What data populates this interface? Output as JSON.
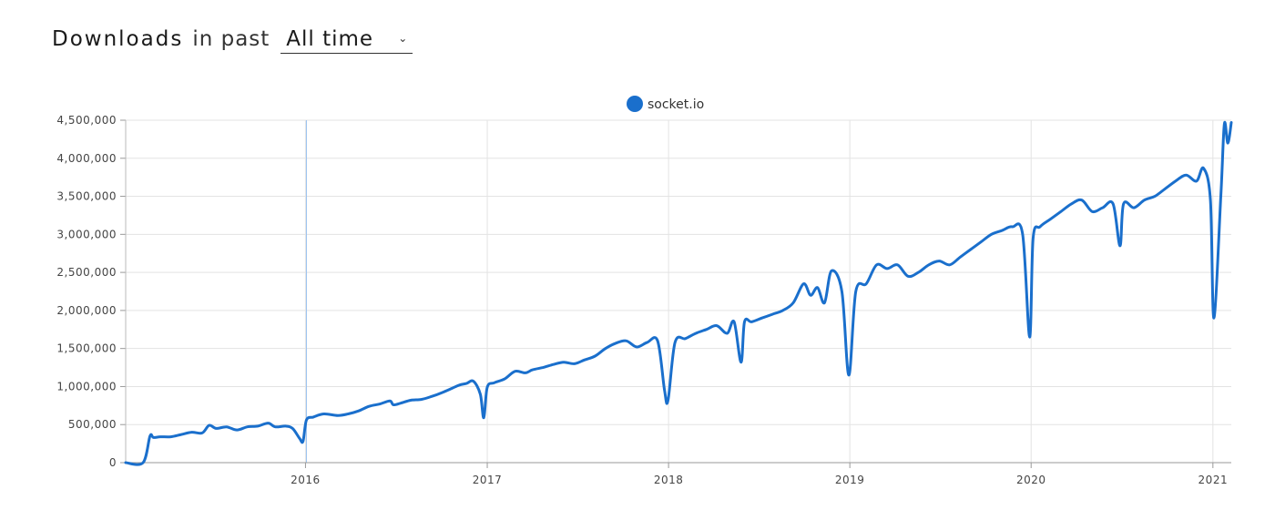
{
  "header": {
    "title": "Downloads",
    "subtitle": "in past",
    "range_selected": "All time"
  },
  "colors": {
    "series": "#1a6fcc",
    "grid": "#e3e3e3",
    "highlight": "#9cc3f0"
  },
  "icons": {
    "range_dropdown": "chevron-down-icon"
  },
  "chart_data": {
    "type": "line",
    "legend": {
      "entries": [
        "socket.io"
      ],
      "position": "top-center"
    },
    "x_ticks": [
      "2016",
      "2017",
      "2018",
      "2019",
      "2020",
      "2021"
    ],
    "y_ticks": [
      "0",
      "500,000",
      "1,000,000",
      "1,500,000",
      "2,000,000",
      "2,500,000",
      "3,000,000",
      "3,500,000",
      "4,000,000",
      "4,500,000"
    ],
    "xlim": [
      "2015-01-04",
      "2021-02-07"
    ],
    "ylim": [
      0,
      4500000
    ],
    "grid": true,
    "highlight_date": "2016-01-03",
    "series": [
      {
        "name": "socket.io",
        "x": [
          "2015-01-04",
          "2015-02-08",
          "2015-02-22",
          "2015-03-01",
          "2015-03-15",
          "2015-04-05",
          "2015-04-26",
          "2015-05-17",
          "2015-06-07",
          "2015-06-21",
          "2015-07-05",
          "2015-07-26",
          "2015-08-16",
          "2015-09-06",
          "2015-09-27",
          "2015-10-18",
          "2015-11-01",
          "2015-11-22",
          "2015-12-06",
          "2015-12-20",
          "2015-12-27",
          "2016-01-03",
          "2016-01-17",
          "2016-02-07",
          "2016-03-06",
          "2016-03-27",
          "2016-04-17",
          "2016-05-08",
          "2016-05-29",
          "2016-06-19",
          "2016-06-26",
          "2016-07-10",
          "2016-07-31",
          "2016-08-21",
          "2016-09-11",
          "2016-10-02",
          "2016-10-23",
          "2016-11-06",
          "2016-11-20",
          "2016-12-04",
          "2016-12-18",
          "2016-12-25",
          "2017-01-01",
          "2017-01-15",
          "2017-02-05",
          "2017-02-26",
          "2017-03-19",
          "2017-04-02",
          "2017-04-23",
          "2017-05-14",
          "2017-06-04",
          "2017-06-25",
          "2017-07-16",
          "2017-08-06",
          "2017-08-27",
          "2017-09-17",
          "2017-10-08",
          "2017-10-29",
          "2017-11-19",
          "2017-12-10",
          "2017-12-24",
          "2017-12-31",
          "2018-01-14",
          "2018-02-04",
          "2018-02-25",
          "2018-03-18",
          "2018-04-08",
          "2018-04-29",
          "2018-05-13",
          "2018-05-27",
          "2018-06-03",
          "2018-06-17",
          "2018-07-08",
          "2018-07-29",
          "2018-08-19",
          "2018-09-09",
          "2018-09-30",
          "2018-10-14",
          "2018-10-28",
          "2018-11-11",
          "2018-11-25",
          "2018-12-16",
          "2018-12-30",
          "2019-01-13",
          "2019-02-03",
          "2019-02-24",
          "2019-03-17",
          "2019-04-07",
          "2019-04-28",
          "2019-05-19",
          "2019-06-09",
          "2019-06-30",
          "2019-07-21",
          "2019-08-11",
          "2019-09-01",
          "2019-09-22",
          "2019-10-13",
          "2019-11-03",
          "2019-11-24",
          "2019-12-15",
          "2019-12-29",
          "2020-01-05",
          "2020-01-19",
          "2020-02-09",
          "2020-03-01",
          "2020-03-22",
          "2020-04-12",
          "2020-05-03",
          "2020-05-24",
          "2020-06-14",
          "2020-06-28",
          "2020-07-05",
          "2020-07-26",
          "2020-08-16",
          "2020-09-06",
          "2020-09-27",
          "2020-10-18",
          "2020-11-08",
          "2020-11-29",
          "2020-12-13",
          "2020-12-27",
          "2021-01-03",
          "2021-01-17",
          "2021-01-24",
          "2021-01-31",
          "2021-02-07"
        ],
        "values": [
          0,
          0,
          350000,
          330000,
          340000,
          340000,
          370000,
          400000,
          390000,
          490000,
          450000,
          470000,
          430000,
          470000,
          480000,
          520000,
          470000,
          480000,
          450000,
          320000,
          280000,
          560000,
          600000,
          640000,
          620000,
          640000,
          680000,
          740000,
          770000,
          810000,
          760000,
          780000,
          820000,
          830000,
          870000,
          920000,
          980000,
          1020000,
          1040000,
          1070000,
          900000,
          590000,
          990000,
          1050000,
          1100000,
          1200000,
          1180000,
          1220000,
          1250000,
          1290000,
          1320000,
          1300000,
          1350000,
          1400000,
          1500000,
          1570000,
          1600000,
          1520000,
          1580000,
          1600000,
          950000,
          820000,
          1580000,
          1630000,
          1700000,
          1750000,
          1800000,
          1700000,
          1850000,
          1320000,
          1850000,
          1850000,
          1900000,
          1950000,
          2000000,
          2100000,
          2350000,
          2200000,
          2300000,
          2100000,
          2520000,
          2250000,
          1150000,
          2250000,
          2350000,
          2600000,
          2550000,
          2600000,
          2450000,
          2500000,
          2600000,
          2650000,
          2600000,
          2700000,
          2800000,
          2900000,
          3000000,
          3050000,
          3100000,
          3000000,
          1650000,
          2950000,
          3100000,
          3200000,
          3300000,
          3400000,
          3450000,
          3300000,
          3350000,
          3400000,
          2850000,
          3400000,
          3350000,
          3450000,
          3500000,
          3600000,
          3700000,
          3780000,
          3700000,
          3870000,
          3450000,
          1900000,
          3500000,
          4450000,
          4200000,
          4470000
        ]
      }
    ]
  }
}
